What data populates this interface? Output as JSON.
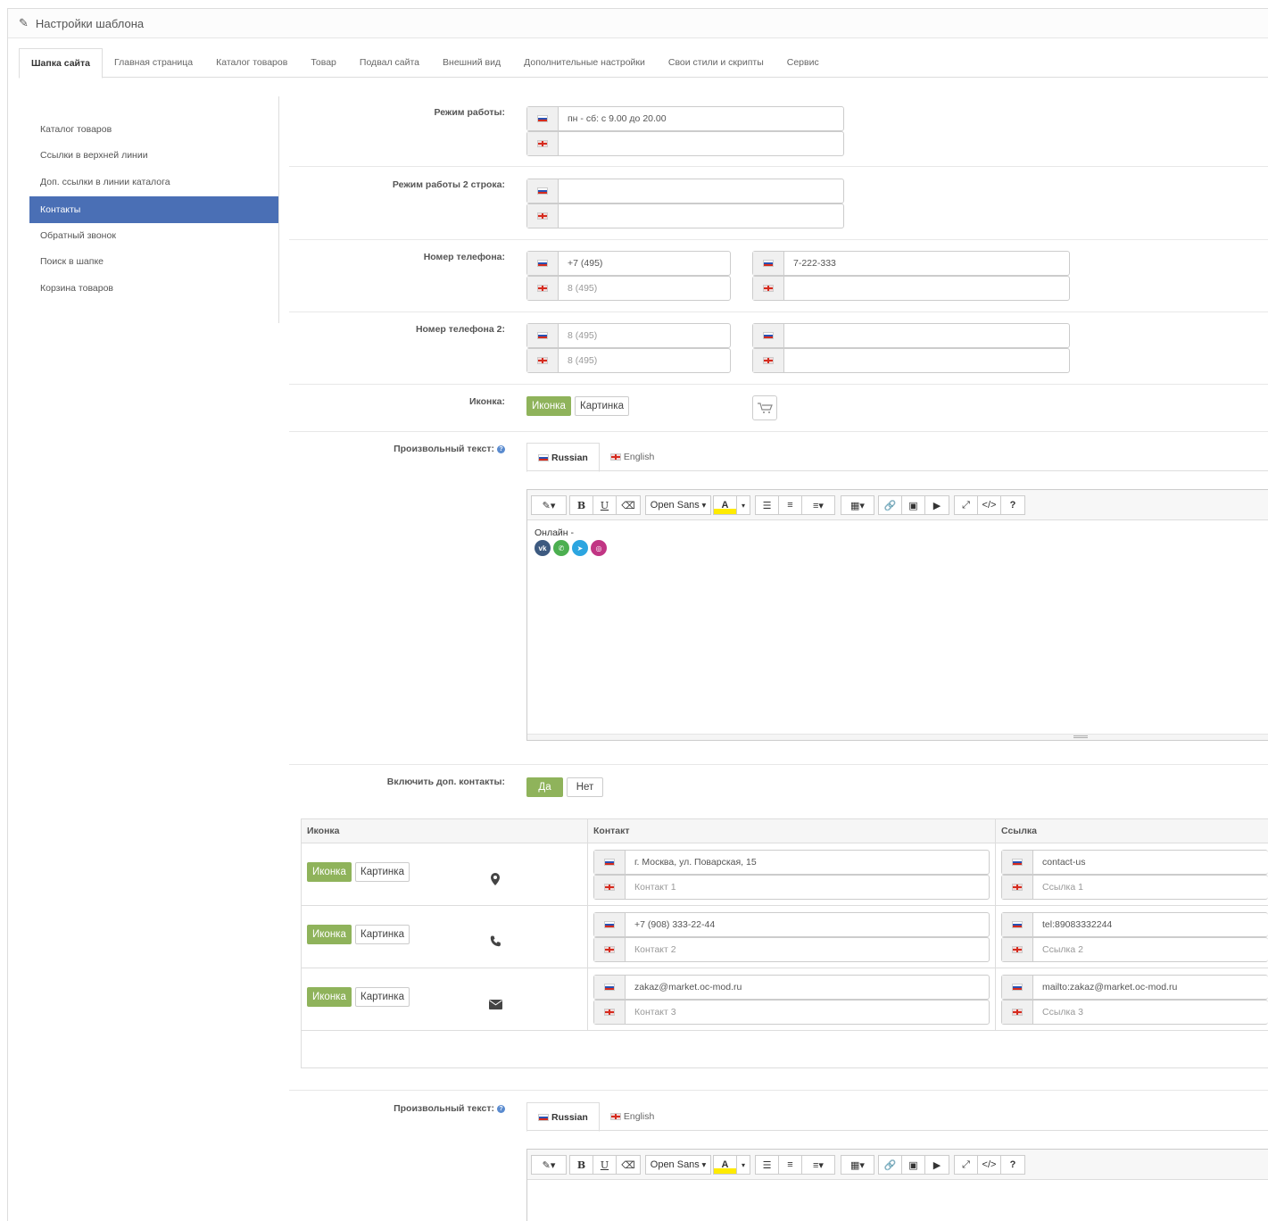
{
  "header": {
    "title": "Настройки шаблона",
    "icon": "pencil-icon"
  },
  "tabs": [
    "Шапка сайта",
    "Главная страница",
    "Каталог товаров",
    "Товар",
    "Подвал сайта",
    "Внешний вид",
    "Дополнительные настройки",
    "Свои стили и скрипты",
    "Сервис"
  ],
  "sidebar": [
    "Каталог товаров",
    "Ссылки в верхней линии",
    "Доп. ссылки в линии каталога",
    "Контакты",
    "Обратный звонок",
    "Поиск в шапке",
    "Корзина товаров"
  ],
  "fields": {
    "work_mode": {
      "label": "Режим работы:",
      "ru": "пн - сб: с 9.00 до 20.00",
      "en": ""
    },
    "work_mode2": {
      "label": "Режим работы 2 строка:",
      "ru": "",
      "en": ""
    },
    "phone": {
      "label": "Номер телефона:",
      "ru_code": "+7 (495)",
      "en_code_placeholder": "8 (495)",
      "ru_number": "7-222-333",
      "en_number": ""
    },
    "phone2": {
      "label": "Номер телефона 2:",
      "ru_code_placeholder": "8 (495)",
      "en_code_placeholder": "8 (495)",
      "ru_number": "",
      "en_number": ""
    },
    "icon": {
      "label": "Иконка:",
      "opt_icon": "Иконка",
      "opt_image": "Картинка",
      "preview_icon": "cart-icon"
    },
    "custom_text": {
      "label": "Произвольный текст:",
      "lang_ru": "Russian",
      "lang_en": "English",
      "content": "Онлайн -"
    },
    "extra_contacts": {
      "label": "Включить доп. контакты:",
      "yes": "Да",
      "no": "Нет"
    },
    "custom_text2": {
      "label": "Произвольный текст:",
      "lang_ru": "Russian",
      "lang_en": "English"
    }
  },
  "editor": {
    "font": "Open Sans"
  },
  "contacts_table": {
    "headers": [
      "Иконка",
      "Контакт",
      "Ссылка"
    ],
    "rows": [
      {
        "icon": "map-marker-icon",
        "btn_icon": "Иконка",
        "btn_image": "Картинка",
        "contact_ru": "г. Москва, ул. Поварская, 15",
        "contact_en_placeholder": "Контакт 1",
        "link_ru": "contact-us",
        "link_en_placeholder": "Ссылка 1"
      },
      {
        "icon": "phone-icon",
        "btn_icon": "Иконка",
        "btn_image": "Картинка",
        "contact_ru": "+7 (908) 333-22-44",
        "contact_en_placeholder": "Контакт 2",
        "link_ru": "tel:89083332244",
        "link_en_placeholder": "Ссылка 2"
      },
      {
        "icon": "envelope-icon",
        "btn_icon": "Иконка",
        "btn_image": "Картинка",
        "contact_ru": "zakaz@market.oc-mod.ru",
        "contact_en_placeholder": "Контакт 3",
        "link_ru": "mailto:zakaz@market.oc-mod.ru",
        "link_en_placeholder": "Ссылка 3"
      }
    ]
  },
  "colors": {
    "accent_blue": "#4a6fb5",
    "toggle_green": "#8fb35b"
  }
}
